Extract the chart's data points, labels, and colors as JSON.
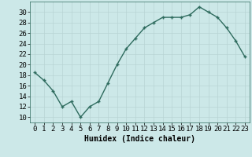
{
  "x": [
    0,
    1,
    2,
    3,
    4,
    5,
    6,
    7,
    8,
    9,
    10,
    11,
    12,
    13,
    14,
    15,
    16,
    17,
    18,
    19,
    20,
    21,
    22,
    23
  ],
  "y": [
    18.5,
    17.0,
    15.0,
    12.0,
    13.0,
    10.0,
    12.0,
    13.0,
    16.5,
    20.0,
    23.0,
    25.0,
    27.0,
    28.0,
    29.0,
    29.0,
    29.0,
    29.5,
    31.0,
    30.0,
    29.0,
    27.0,
    24.5,
    21.5
  ],
  "line_color": "#2e6b5e",
  "marker": "+",
  "marker_color": "#2e6b5e",
  "bg_color": "#cce8e8",
  "grid_color": "#b8d4d4",
  "xlabel": "Humidex (Indice chaleur)",
  "xlim": [
    -0.5,
    23.5
  ],
  "ylim": [
    9,
    32
  ],
  "yticks": [
    10,
    12,
    14,
    16,
    18,
    20,
    22,
    24,
    26,
    28,
    30
  ],
  "xtick_labels": [
    "0",
    "1",
    "2",
    "3",
    "4",
    "5",
    "6",
    "7",
    "8",
    "9",
    "10",
    "11",
    "12",
    "13",
    "14",
    "15",
    "16",
    "17",
    "18",
    "19",
    "20",
    "21",
    "22",
    "23"
  ],
  "xlabel_fontsize": 7,
  "tick_fontsize": 6.5,
  "line_width": 1.0,
  "marker_size": 3.5
}
